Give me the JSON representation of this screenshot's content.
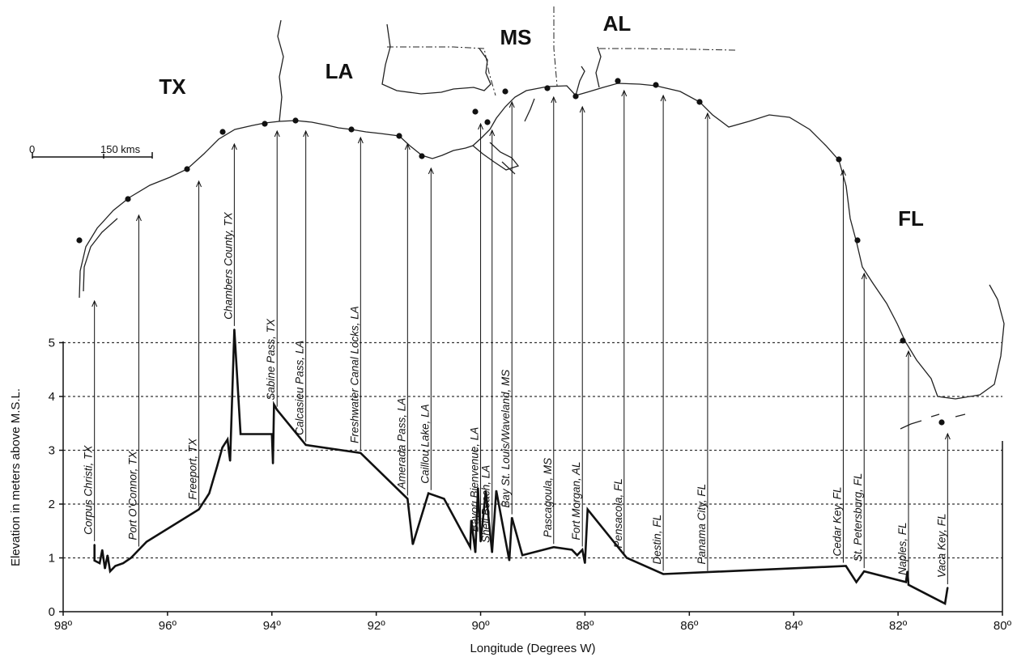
{
  "chart_data": {
    "type": "line",
    "xlabel": "Longitude (Degrees W)",
    "ylabel": "Elevation in meters above M.S.L.",
    "xlim": [
      98,
      80
    ],
    "ylim": [
      0,
      5.3
    ],
    "x_ticks": [
      "98º",
      "96º",
      "94º",
      "92º",
      "90º",
      "88º",
      "86º",
      "84º",
      "82º",
      "80º"
    ],
    "x_tick_values": [
      98,
      96,
      94,
      92,
      90,
      88,
      86,
      84,
      82,
      80
    ],
    "y_ticks": [
      "0",
      "1",
      "2",
      "3",
      "4",
      "5"
    ],
    "y_tick_values": [
      0,
      1,
      2,
      3,
      4,
      5
    ],
    "grid": "horizontal dotted lines at 1, 2, 3, 4, 5 m",
    "series": [
      {
        "x": [
          97.4,
          97.4,
          97.3,
          97.25,
          97.2,
          97.15,
          97.1,
          97.05,
          97.0,
          96.85,
          96.7,
          96.55,
          96.4,
          95.4,
          95.2,
          95.05,
          94.95,
          94.85,
          94.82,
          94.8,
          94.72,
          94.6,
          94.0,
          93.98,
          93.96,
          93.9,
          93.35,
          92.3,
          91.4,
          91.3,
          91.0,
          90.7,
          90.2,
          90.18,
          90.1,
          90.05,
          90.0,
          89.9,
          89.78,
          89.7,
          89.45,
          89.4,
          89.2,
          88.6,
          88.25,
          88.15,
          88.05,
          88.0,
          87.95,
          87.2,
          86.5,
          83.0,
          82.8,
          82.65,
          81.85,
          81.82,
          81.8,
          81.1,
          81.05
        ],
        "y": [
          1.25,
          0.95,
          0.9,
          1.15,
          0.8,
          1.05,
          0.75,
          0.8,
          0.85,
          0.9,
          1.0,
          1.15,
          1.3,
          1.9,
          2.2,
          2.7,
          3.05,
          3.2,
          2.95,
          2.8,
          5.25,
          3.3,
          3.3,
          2.75,
          3.85,
          3.75,
          3.1,
          2.95,
          2.1,
          1.25,
          2.2,
          2.1,
          1.2,
          1.7,
          1.1,
          2.3,
          1.3,
          2.25,
          1.1,
          2.25,
          0.95,
          1.75,
          1.05,
          1.2,
          1.15,
          1.05,
          1.15,
          0.9,
          1.9,
          1.0,
          0.7,
          0.85,
          0.55,
          0.75,
          0.55,
          0.75,
          0.5,
          0.15,
          0.45
        ]
      }
    ],
    "states": [
      "TX",
      "LA",
      "MS",
      "AL",
      "FL"
    ],
    "scale_bar": {
      "start": "0",
      "end": "150 kms"
    },
    "sites": [
      {
        "name": "Corpus Christi, TX",
        "lon": 97.4
      },
      {
        "name": "Port O'Connor, TX",
        "lon": 96.55
      },
      {
        "name": "Freeport, TX",
        "lon": 95.4
      },
      {
        "name": "Chambers County, TX",
        "lon": 94.72
      },
      {
        "name": "Sabine Pass, TX",
        "lon": 93.9
      },
      {
        "name": "Calcasieu Pass, LA",
        "lon": 93.35
      },
      {
        "name": "Freshwater Canal Locks, LA",
        "lon": 92.3
      },
      {
        "name": "Amerada Pass, LA",
        "lon": 91.4
      },
      {
        "name": "Caillou Lake, LA",
        "lon": 90.95
      },
      {
        "name": "Bayou Bienvenue, LA",
        "lon": 90.0
      },
      {
        "name": "Shell Beach, LA",
        "lon": 89.78
      },
      {
        "name": "Bay St. Louis/Waveland, MS",
        "lon": 89.4
      },
      {
        "name": "Pascagoula, MS",
        "lon": 88.6
      },
      {
        "name": "Fort Morgan, AL",
        "lon": 88.05
      },
      {
        "name": "Pensacola, FL",
        "lon": 87.25
      },
      {
        "name": "Destin, FL",
        "lon": 86.5
      },
      {
        "name": "Panama City, FL",
        "lon": 85.65
      },
      {
        "name": "Cedar Key, FL",
        "lon": 83.05
      },
      {
        "name": "St. Petersburg, FL",
        "lon": 82.65
      },
      {
        "name": "Naples, FL",
        "lon": 81.8
      },
      {
        "name": "Vaca Key, FL",
        "lon": 81.05
      }
    ]
  }
}
